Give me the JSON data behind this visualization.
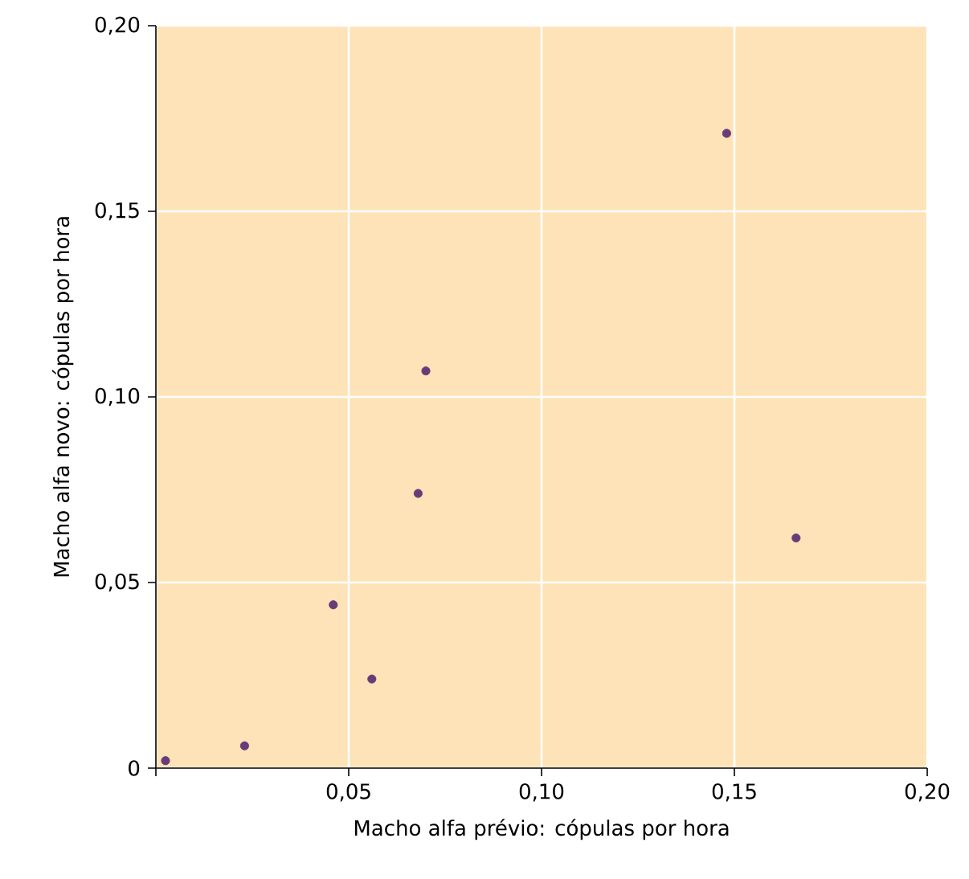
{
  "chart_data": {
    "type": "scatter",
    "xlabel": "Macho alfa prévio: cópulas por hora",
    "ylabel": "Macho alfa novo: cópulas por hora",
    "x": [
      0.0025,
      0.023,
      0.046,
      0.056,
      0.068,
      0.07,
      0.148,
      0.166
    ],
    "series": [
      {
        "color": "#6b3a78",
        "values": [
          0.002,
          0.006,
          0.044,
          0.024,
          0.074,
          0.107,
          0.171,
          0.062
        ]
      }
    ],
    "xlim": [
      0,
      0.2
    ],
    "ylim": [
      0,
      0.2
    ],
    "xticks": [
      {
        "value": 0,
        "label": null
      },
      {
        "value": 0.05,
        "label": "0,05"
      },
      {
        "value": 0.1,
        "label": "0,10"
      },
      {
        "value": 0.15,
        "label": "0,15"
      },
      {
        "value": 0.2,
        "label": "0,20"
      }
    ],
    "yticks": [
      0,
      {
        "value": 0.05,
        "label": "0,05"
      },
      {
        "value": 0.1,
        "label": "0,10"
      },
      {
        "value": 0.15,
        "label": "0,15"
      },
      {
        "value": 0.2,
        "label": "0,20"
      }
    ],
    "grid": true
  }
}
